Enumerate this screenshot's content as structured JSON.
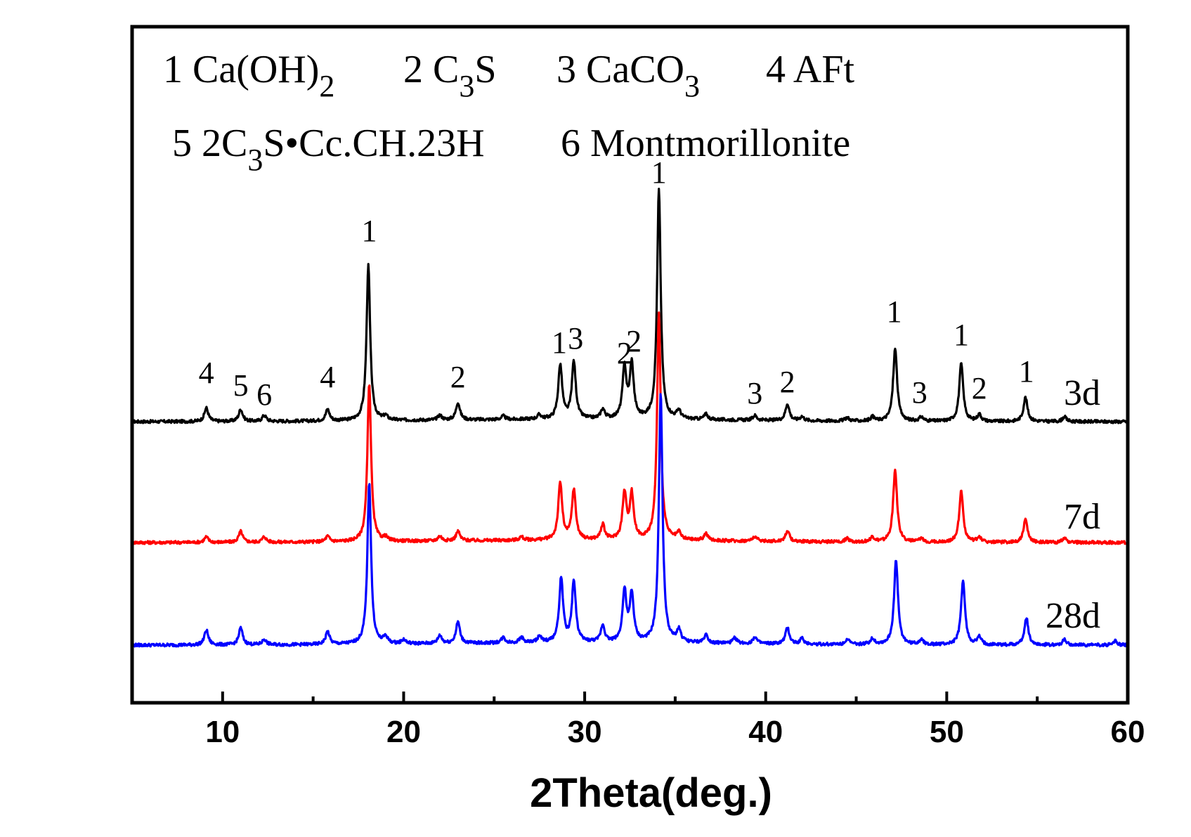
{
  "chart_data": {
    "type": "line",
    "xlabel": "2Theta(deg.)",
    "ylabel": "",
    "xlim": [
      5,
      60
    ],
    "xticks": [
      10,
      20,
      30,
      40,
      50,
      60
    ],
    "y_ticks_shown": false,
    "grid": false,
    "legend": [
      {
        "num": "1",
        "parts": [
          [
            "Ca(OH)",
            "n"
          ],
          [
            "2",
            "sub"
          ]
        ]
      },
      {
        "num": "2",
        "parts": [
          [
            "C",
            "n"
          ],
          [
            "3",
            "sub"
          ],
          [
            "S",
            "n"
          ]
        ]
      },
      {
        "num": "3",
        "parts": [
          [
            "CaCO",
            "n"
          ],
          [
            "3",
            "sub"
          ]
        ]
      },
      {
        "num": "4",
        "parts": [
          [
            "AFt",
            "n"
          ]
        ]
      },
      {
        "num": "5",
        "parts": [
          [
            "2C",
            "n"
          ],
          [
            "3",
            "sub"
          ],
          [
            "S•Cc.CH.23H",
            "n"
          ]
        ]
      },
      {
        "num": "6",
        "parts": [
          [
            "Montmorillonite",
            "n"
          ]
        ]
      }
    ],
    "phases": {
      "1": "Ca(OH)2",
      "2": "C3S",
      "3": "CaCO3",
      "4": "AFt",
      "5": "2C3S•Cc.CH.23H",
      "6": "Montmorillonite"
    },
    "peak_labels": [
      {
        "x": 9.1,
        "label": "4"
      },
      {
        "x": 11.0,
        "label": "5"
      },
      {
        "x": 12.3,
        "label": "6"
      },
      {
        "x": 15.8,
        "label": "4"
      },
      {
        "x": 18.1,
        "label": "1"
      },
      {
        "x": 23.0,
        "label": "2"
      },
      {
        "x": 28.6,
        "label": "1"
      },
      {
        "x": 29.5,
        "label": "3"
      },
      {
        "x": 32.2,
        "label": "2"
      },
      {
        "x": 33.3,
        "label": "2"
      },
      {
        "x": 34.1,
        "label": "1"
      },
      {
        "x": 39.4,
        "label": "3"
      },
      {
        "x": 41.2,
        "label": "2"
      },
      {
        "x": 47.1,
        "label": "1"
      },
      {
        "x": 48.5,
        "label": "3"
      },
      {
        "x": 50.8,
        "label": "1"
      },
      {
        "x": 51.8,
        "label": "2"
      },
      {
        "x": 54.4,
        "label": "1"
      }
    ],
    "series": [
      {
        "name": "3d",
        "color": "#000000",
        "offset": 0,
        "peaks": [
          {
            "x": 9.1,
            "h": 2.0
          },
          {
            "x": 11.0,
            "h": 1.8
          },
          {
            "x": 12.3,
            "h": 0.9
          },
          {
            "x": 15.8,
            "h": 1.7
          },
          {
            "x": 18.05,
            "h": 23.0
          },
          {
            "x": 19.0,
            "h": 0.6
          },
          {
            "x": 22.0,
            "h": 0.7
          },
          {
            "x": 23.0,
            "h": 2.6
          },
          {
            "x": 25.5,
            "h": 0.5
          },
          {
            "x": 27.5,
            "h": 0.6
          },
          {
            "x": 28.65,
            "h": 8.0
          },
          {
            "x": 29.4,
            "h": 8.5
          },
          {
            "x": 31.0,
            "h": 1.4
          },
          {
            "x": 32.2,
            "h": 7.5
          },
          {
            "x": 32.6,
            "h": 8.0
          },
          {
            "x": 34.1,
            "h": 34.0
          },
          {
            "x": 35.2,
            "h": 1.2
          },
          {
            "x": 36.7,
            "h": 0.8
          },
          {
            "x": 39.4,
            "h": 0.7
          },
          {
            "x": 41.2,
            "h": 2.5
          },
          {
            "x": 42.0,
            "h": 0.6
          },
          {
            "x": 44.5,
            "h": 0.5
          },
          {
            "x": 45.9,
            "h": 0.6
          },
          {
            "x": 47.15,
            "h": 10.8
          },
          {
            "x": 48.6,
            "h": 0.6
          },
          {
            "x": 50.8,
            "h": 8.6
          },
          {
            "x": 51.8,
            "h": 1.0
          },
          {
            "x": 54.35,
            "h": 3.6
          },
          {
            "x": 56.5,
            "h": 0.7
          }
        ]
      },
      {
        "name": "7d",
        "color": "#ff0000",
        "offset": 0,
        "peaks": [
          {
            "x": 9.1,
            "h": 0.8
          },
          {
            "x": 11.0,
            "h": 1.6
          },
          {
            "x": 12.3,
            "h": 0.8
          },
          {
            "x": 15.8,
            "h": 0.8
          },
          {
            "x": 18.1,
            "h": 23.5
          },
          {
            "x": 19.0,
            "h": 0.5
          },
          {
            "x": 22.0,
            "h": 0.7
          },
          {
            "x": 23.0,
            "h": 1.4
          },
          {
            "x": 26.5,
            "h": 0.5
          },
          {
            "x": 28.65,
            "h": 8.4
          },
          {
            "x": 29.4,
            "h": 7.4
          },
          {
            "x": 31.0,
            "h": 2.2
          },
          {
            "x": 32.2,
            "h": 6.8
          },
          {
            "x": 32.6,
            "h": 6.6
          },
          {
            "x": 34.1,
            "h": 33.5
          },
          {
            "x": 35.2,
            "h": 1.0
          },
          {
            "x": 36.7,
            "h": 1.0
          },
          {
            "x": 39.4,
            "h": 0.7
          },
          {
            "x": 41.2,
            "h": 1.6
          },
          {
            "x": 44.5,
            "h": 0.5
          },
          {
            "x": 45.9,
            "h": 0.7
          },
          {
            "x": 47.15,
            "h": 10.7
          },
          {
            "x": 48.6,
            "h": 0.5
          },
          {
            "x": 50.8,
            "h": 7.6
          },
          {
            "x": 51.8,
            "h": 0.8
          },
          {
            "x": 54.35,
            "h": 3.4
          },
          {
            "x": 56.5,
            "h": 0.6
          }
        ]
      },
      {
        "name": "28d",
        "color": "#0000ff",
        "offset": 0,
        "peaks": [
          {
            "x": 9.1,
            "h": 2.2
          },
          {
            "x": 11.0,
            "h": 2.5
          },
          {
            "x": 12.3,
            "h": 0.8
          },
          {
            "x": 15.8,
            "h": 1.9
          },
          {
            "x": 18.1,
            "h": 24.0
          },
          {
            "x": 19.0,
            "h": 1.0
          },
          {
            "x": 20.0,
            "h": 0.6
          },
          {
            "x": 22.0,
            "h": 1.2
          },
          {
            "x": 23.0,
            "h": 3.2
          },
          {
            "x": 25.5,
            "h": 0.8
          },
          {
            "x": 26.5,
            "h": 0.8
          },
          {
            "x": 27.5,
            "h": 0.9
          },
          {
            "x": 28.7,
            "h": 9.5
          },
          {
            "x": 29.4,
            "h": 9.0
          },
          {
            "x": 31.0,
            "h": 2.5
          },
          {
            "x": 32.2,
            "h": 7.5
          },
          {
            "x": 32.6,
            "h": 7.0
          },
          {
            "x": 34.2,
            "h": 37.0
          },
          {
            "x": 35.2,
            "h": 1.8
          },
          {
            "x": 36.7,
            "h": 1.2
          },
          {
            "x": 38.3,
            "h": 0.8
          },
          {
            "x": 39.4,
            "h": 1.0
          },
          {
            "x": 41.2,
            "h": 2.4
          },
          {
            "x": 42.0,
            "h": 0.8
          },
          {
            "x": 44.5,
            "h": 0.8
          },
          {
            "x": 45.9,
            "h": 0.9
          },
          {
            "x": 47.2,
            "h": 12.5
          },
          {
            "x": 48.6,
            "h": 0.8
          },
          {
            "x": 50.9,
            "h": 9.5
          },
          {
            "x": 51.8,
            "h": 1.1
          },
          {
            "x": 54.4,
            "h": 4.0
          },
          {
            "x": 56.5,
            "h": 0.8
          },
          {
            "x": 59.3,
            "h": 0.6
          }
        ]
      }
    ]
  }
}
